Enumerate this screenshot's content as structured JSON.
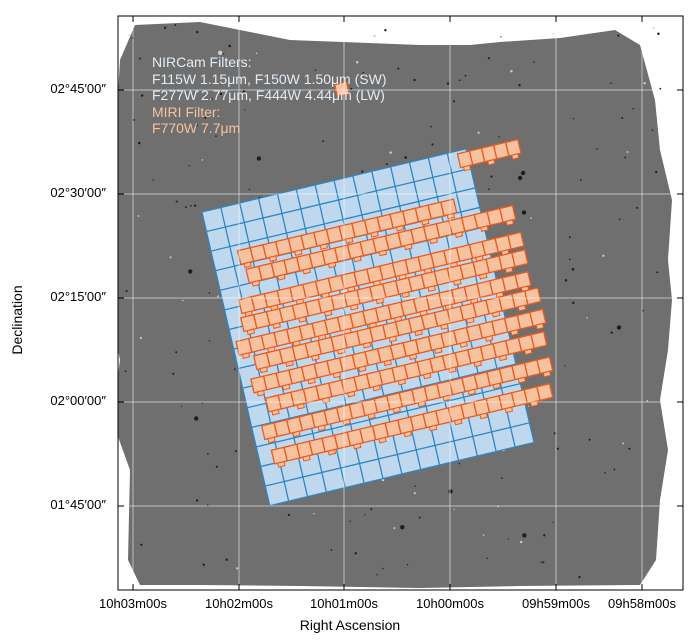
{
  "axes": {
    "xlabel": "Right Ascension",
    "ylabel": "Declination",
    "x_ticks": [
      "10h03m00s",
      "10h02m00s",
      "10h01m00s",
      "10h00m00s",
      "09h59m00s",
      "09h58m00s"
    ],
    "y_ticks": [
      "02°45′00″",
      "02°30′00″",
      "02°15′00″",
      "02°00′00″",
      "01°45′00″"
    ]
  },
  "legend": {
    "nircam_heading": "NIRCam Filters:",
    "nircam_sw": "F115W 1.15μm, F150W 1.50μm (SW)",
    "nircam_lw": "F277W 2.77μm, F444W 4.44μm (LW)",
    "miri_heading": "MIRI Filter:",
    "miri_filter": "F770W 7.7μm"
  },
  "colors": {
    "nircam_fill": "#bfd8ee",
    "nircam_edge": "#2f86c4",
    "miri_fill": "#f6c29f",
    "miri_edge": "#ea5a1e",
    "background": "#6f6f6f"
  }
}
